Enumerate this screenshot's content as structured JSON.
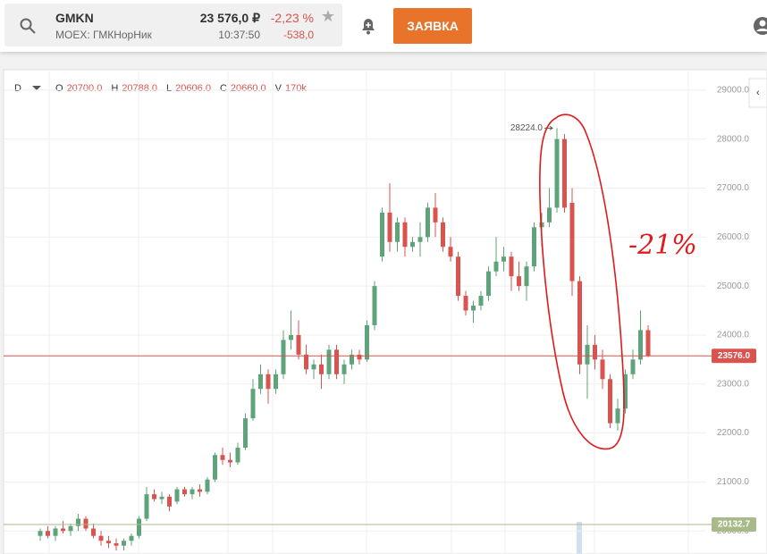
{
  "header": {
    "ticker": "GMKN",
    "exchange": "MOEX: ГМКНорНик",
    "price": "23 576,0 ₽",
    "change_pct": "-2,23 %",
    "time": "10:37:50",
    "change": "-538,0",
    "order_button": "ЗАЯВКА"
  },
  "chart_data": {
    "type": "candlestick",
    "interval": "D",
    "legend": [
      {
        "key": "O",
        "value": "20700.0"
      },
      {
        "key": "H",
        "value": "20788.0"
      },
      {
        "key": "L",
        "value": "20606.0"
      },
      {
        "key": "C",
        "value": "20660.0"
      },
      {
        "key": "V",
        "value": "170k"
      }
    ],
    "up_color": "#5fa37a",
    "down_color": "#d9534f",
    "ylim": [
      19530,
      29380
    ],
    "yticks": [
      {
        "value": 20000,
        "label": "20000.0"
      },
      {
        "value": 21000,
        "label": "21000.0"
      },
      {
        "value": 22000,
        "label": "22000.0"
      },
      {
        "value": 23000,
        "label": "23000.0"
      },
      {
        "value": 24000,
        "label": "24000.0"
      },
      {
        "value": 25000,
        "label": "25000.0"
      },
      {
        "value": 26000,
        "label": "26000.0"
      },
      {
        "value": 27000,
        "label": "27000.0"
      },
      {
        "value": 28000,
        "label": "28000.0"
      },
      {
        "value": 29000,
        "label": "29000.0"
      }
    ],
    "price_lines": [
      {
        "value": 23576,
        "label": "23576.0",
        "color": "#d9534f"
      },
      {
        "value": 20132.7,
        "label": "20132.7",
        "color": "#a8b98a"
      }
    ],
    "high_marker": {
      "value": 28224,
      "label": "28224.0"
    },
    "note": "-21%",
    "candles": [
      [
        19900,
        20050,
        19800,
        20000
      ],
      [
        20000,
        20100,
        19850,
        19900
      ],
      [
        19900,
        20100,
        19800,
        20050
      ],
      [
        20050,
        20200,
        19950,
        20000
      ],
      [
        20000,
        20150,
        19900,
        20100
      ],
      [
        20100,
        20350,
        20000,
        20250
      ],
      [
        20250,
        20300,
        20000,
        20050
      ],
      [
        20050,
        20150,
        19850,
        19900
      ],
      [
        19900,
        20000,
        19700,
        19800
      ],
      [
        19800,
        19900,
        19650,
        19750
      ],
      [
        19750,
        19850,
        19600,
        19700
      ],
      [
        19700,
        19850,
        19600,
        19800
      ],
      [
        19800,
        19950,
        19700,
        19900
      ],
      [
        19900,
        20300,
        19850,
        20250
      ],
      [
        20250,
        20900,
        20200,
        20750
      ],
      [
        20750,
        20850,
        20600,
        20650
      ],
      [
        20650,
        20800,
        20550,
        20700
      ],
      [
        20700,
        20750,
        20400,
        20500
      ],
      [
        20600,
        20900,
        20550,
        20850
      ],
      [
        20850,
        20900,
        20700,
        20750
      ],
      [
        20750,
        20900,
        20650,
        20850
      ],
      [
        20850,
        20950,
        20700,
        20800
      ],
      [
        20800,
        21100,
        20750,
        21050
      ],
      [
        21050,
        21600,
        21000,
        21550
      ],
      [
        21550,
        21700,
        21350,
        21450
      ],
      [
        21450,
        21600,
        21300,
        21400
      ],
      [
        21400,
        21800,
        21350,
        21700
      ],
      [
        21700,
        22400,
        21650,
        22300
      ],
      [
        22300,
        23100,
        22250,
        22900
      ],
      [
        22900,
        23400,
        22800,
        23200
      ],
      [
        23200,
        23300,
        22600,
        22900
      ],
      [
        22900,
        23300,
        22800,
        23200
      ],
      [
        23200,
        24100,
        23100,
        23900
      ],
      [
        23900,
        24500,
        23700,
        24000
      ],
      [
        24000,
        24300,
        23500,
        23600
      ],
      [
        23600,
        23800,
        23200,
        23300
      ],
      [
        23300,
        23500,
        23100,
        23400
      ],
      [
        23400,
        23600,
        22900,
        23200
      ],
      [
        23200,
        23800,
        23100,
        23700
      ],
      [
        23700,
        23800,
        23100,
        23200
      ],
      [
        23200,
        23500,
        23000,
        23400
      ],
      [
        23400,
        23700,
        23300,
        23600
      ],
      [
        23600,
        23700,
        23400,
        23500
      ],
      [
        23500,
        24300,
        23450,
        24200
      ],
      [
        24200,
        25100,
        24100,
        25000
      ],
      [
        25600,
        26600,
        25500,
        26500
      ],
      [
        26500,
        27100,
        25700,
        25900
      ],
      [
        25900,
        26400,
        25700,
        26300
      ],
      [
        26300,
        26400,
        25600,
        25800
      ],
      [
        25800,
        26000,
        25700,
        25900
      ],
      [
        25900,
        26300,
        25600,
        26000
      ],
      [
        26000,
        26700,
        25900,
        26600
      ],
      [
        26600,
        26900,
        26000,
        26300
      ],
      [
        26300,
        26400,
        25700,
        25800
      ],
      [
        25800,
        26000,
        25500,
        25600
      ],
      [
        25600,
        25700,
        24700,
        24800
      ],
      [
        24800,
        24900,
        24400,
        24500
      ],
      [
        24500,
        24700,
        24250,
        24600
      ],
      [
        24600,
        24900,
        24500,
        24800
      ],
      [
        24800,
        25400,
        24700,
        25300
      ],
      [
        25300,
        26000,
        25200,
        25500
      ],
      [
        25500,
        25800,
        25300,
        25600
      ],
      [
        25600,
        25700,
        24900,
        25200
      ],
      [
        25200,
        25500,
        24900,
        25000
      ],
      [
        25000,
        25500,
        24700,
        25400
      ],
      [
        25400,
        26300,
        25300,
        26200
      ],
      [
        26200,
        26500,
        25800,
        26300
      ],
      [
        26300,
        27000,
        26200,
        26600
      ],
      [
        26600,
        28224,
        26500,
        28000
      ],
      [
        28000,
        28100,
        26500,
        26600
      ],
      [
        26700,
        27000,
        24800,
        25100
      ],
      [
        25100,
        25200,
        23200,
        23400
      ],
      [
        23400,
        24200,
        22700,
        23800
      ],
      [
        23800,
        24000,
        23300,
        23500
      ],
      [
        23500,
        23700,
        22900,
        23100
      ],
      [
        23100,
        23200,
        22100,
        22200
      ],
      [
        22200,
        22700,
        22050,
        22500
      ],
      [
        22500,
        23300,
        22400,
        23200
      ],
      [
        23200,
        23700,
        23100,
        23500
      ],
      [
        23500,
        24500,
        23400,
        24100
      ],
      [
        24100,
        24200,
        23550,
        23576
      ]
    ]
  }
}
